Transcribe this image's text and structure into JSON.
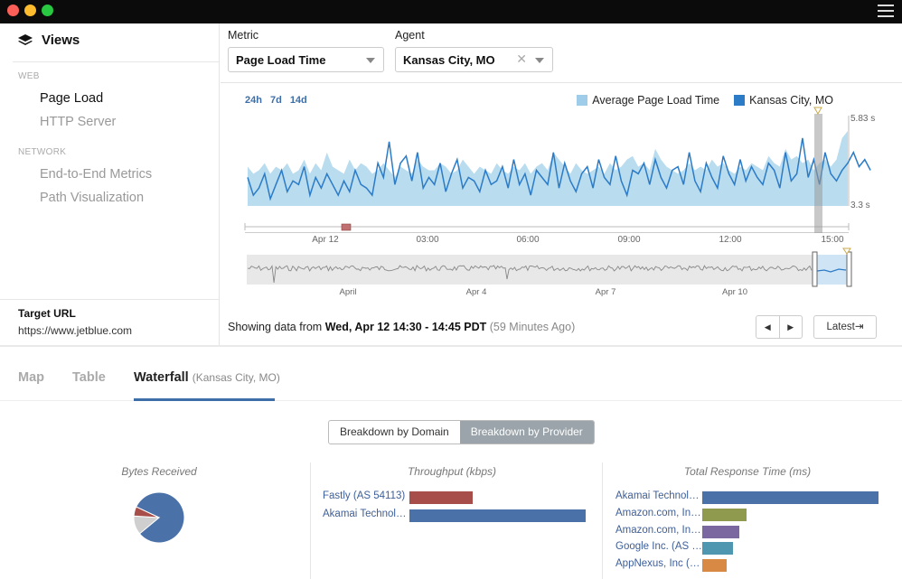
{
  "window": {
    "controls": [
      "close",
      "minimize",
      "maximize"
    ]
  },
  "sidebar": {
    "title": "Views",
    "sections": [
      {
        "label": "WEB",
        "items": [
          {
            "label": "Page Load",
            "active": true
          },
          {
            "label": "HTTP Server",
            "active": false
          }
        ]
      },
      {
        "label": "NETWORK",
        "items": [
          {
            "label": "End-to-End Metrics",
            "active": false
          },
          {
            "label": "Path Visualization",
            "active": false
          }
        ]
      }
    ],
    "target_url_label": "Target URL",
    "target_url": "https://www.jetblue.com"
  },
  "controls": {
    "metric_label": "Metric",
    "metric_value": "Page Load Time",
    "agent_label": "Agent",
    "agent_value": "Kansas City, MO"
  },
  "timeline": {
    "ranges": [
      "24h",
      "7d",
      "14d"
    ],
    "legend": [
      {
        "name": "Average Page Load Time",
        "color": "#9fcde9"
      },
      {
        "name": "Kansas City, MO",
        "color": "#2b7bc7"
      }
    ],
    "y_max_label": "5.83 s",
    "y_min_label": "3.3 s",
    "main_x_ticks": [
      "Apr 12",
      "03:00",
      "06:00",
      "09:00",
      "12:00",
      "15:00"
    ],
    "overview_x_ticks": [
      "April",
      "Apr 4",
      "Apr 7",
      "Apr 10"
    ],
    "showing_prefix": "Showing data from",
    "showing_range": "Wed, Apr 12 14:30 - 14:45 PDT",
    "showing_ago": "(59 Minutes Ago)",
    "prev_symbol": "◀",
    "next_symbol": "▶",
    "latest_label": "Latest⇥"
  },
  "chart_data": [
    {
      "type": "area",
      "series": [
        {
          "name": "Average Page Load Time",
          "values": [
            4.4,
            4.2,
            4.3,
            4.5,
            4.2,
            4.4,
            4.3,
            4.5,
            4.2,
            4.3,
            4.6,
            4.2,
            4.5,
            4.3,
            4.8,
            4.4,
            4.3,
            4.2,
            4.6,
            4.3,
            4.5,
            4.4,
            4.2,
            4.3,
            4.5,
            4.3,
            4.1,
            4.4,
            4.3,
            4.2,
            4.6,
            4.4,
            4.3,
            4.3,
            4.5,
            4.4,
            4.2,
            4.3,
            4.6,
            4.4,
            4.2,
            4.4,
            4.3,
            4.2,
            4.5,
            4.3,
            4.2,
            4.4,
            4.3,
            4.5,
            4.2,
            4.4,
            4.5,
            4.3,
            4.8,
            4.6,
            4.4,
            4.2,
            4.5,
            4.3,
            4.2,
            4.3,
            4.4,
            4.2,
            4.5,
            4.3,
            4.4,
            4.6,
            4.7,
            4.4,
            4.5,
            4.3,
            4.9,
            4.6,
            4.4,
            4.3,
            4.2,
            4.3,
            4.5,
            4.3,
            4.4,
            4.3,
            4.6,
            4.4,
            4.5,
            4.3,
            4.2,
            4.4,
            4.3,
            4.5,
            4.4,
            4.3,
            4.7,
            4.5,
            4.4,
            4.9,
            4.6,
            4.7,
            4.5,
            4.6,
            4.3,
            4.5,
            4.6,
            4.4,
            4.6,
            5.2,
            5.4
          ]
        },
        {
          "name": "Kansas City, MO",
          "values": [
            4.1,
            3.6,
            3.8,
            4.2,
            3.5,
            3.9,
            4.3,
            3.7,
            4.0,
            3.9,
            4.4,
            3.6,
            4.1,
            3.8,
            4.2,
            3.9,
            3.6,
            4.0,
            3.7,
            4.3,
            3.9,
            3.8,
            3.6,
            4.5,
            4.1,
            5.1,
            3.9,
            4.5,
            4.7,
            4.0,
            4.8,
            3.8,
            4.1,
            3.9,
            4.5,
            3.7,
            4.2,
            4.6,
            3.8,
            4.1,
            4.0,
            3.7,
            4.3,
            3.9,
            4.0,
            4.4,
            3.8,
            4.6,
            3.9,
            4.2,
            3.6,
            4.3,
            4.1,
            3.9,
            4.8,
            3.8,
            4.5,
            4.0,
            3.7,
            4.2,
            4.4,
            3.8,
            4.6,
            4.1,
            3.9,
            4.7,
            4.0,
            3.6,
            4.3,
            4.2,
            4.5,
            3.9,
            4.6,
            4.1,
            3.8,
            4.3,
            4.4,
            3.9,
            4.8,
            4.0,
            3.7,
            4.5,
            4.1,
            3.8,
            4.7,
            4.2,
            3.9,
            4.6,
            4.0,
            4.4,
            4.1,
            3.9,
            4.5,
            4.3,
            3.8,
            4.8,
            4.0,
            4.2,
            5.2,
            4.1,
            4.6,
            3.9,
            4.8,
            4.2,
            4.0,
            4.3,
            4.5,
            4.8,
            4.4,
            4.6,
            4.3
          ]
        }
      ],
      "ylim": [
        3.3,
        5.83
      ]
    },
    {
      "type": "bar",
      "title": "Throughput (kbps)",
      "categories": [
        "Fastly (AS 54113)",
        "Akamai Technol…"
      ],
      "values": [
        700,
        1940
      ],
      "colors": [
        "#a84e4a",
        "#4a72a8"
      ]
    },
    {
      "type": "bar",
      "title": "Total Response Time (ms)",
      "categories": [
        "Akamai Technol…",
        "Amazon.com, In…",
        "Amazon.com, In…",
        "Google Inc. (AS …",
        "AppNexus, Inc (…"
      ],
      "values": [
        1950,
        490,
        410,
        340,
        270
      ],
      "colors": [
        "#4a72a8",
        "#8f9a4e",
        "#7c68a0",
        "#4f97b0",
        "#d88a45"
      ]
    },
    {
      "type": "pie",
      "title": "Bytes Received",
      "values": [
        82,
        12,
        6
      ],
      "colors": [
        "#4a72a8",
        "#cfcfcf",
        "#a84e4a"
      ]
    }
  ],
  "tabs": [
    {
      "label": "Map",
      "active": false
    },
    {
      "label": "Table",
      "active": false
    },
    {
      "label": "Waterfall",
      "sub": "(Kansas City, MO)",
      "active": true
    }
  ],
  "breakdown": {
    "domain_label": "Breakdown by Domain",
    "provider_label": "Breakdown by Provider"
  }
}
